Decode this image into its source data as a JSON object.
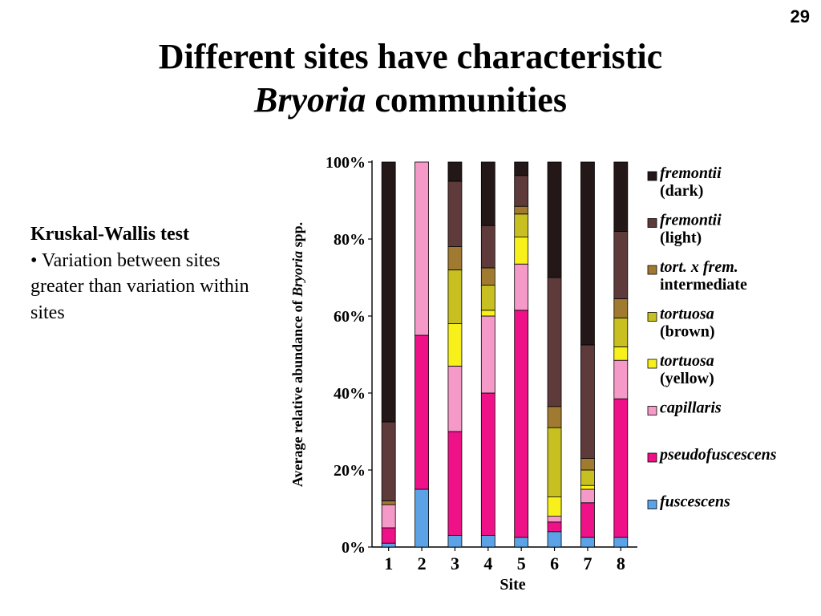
{
  "slide_number": "29",
  "title": {
    "line1": "Different sites have characteristic",
    "line2_italic": "Bryoria",
    "line2_rest": " communities"
  },
  "side_text": {
    "heading": "Kruskal-Wallis test",
    "bullet": "• Variation between sites greater than variation within sites"
  },
  "chart_data": {
    "type": "bar",
    "stacked": true,
    "title": "",
    "xlabel": "Site",
    "ylabel_parts": [
      "Average relative abundance of ",
      "Bryoria",
      " spp."
    ],
    "ylim": [
      0,
      100
    ],
    "yticks": [
      "0%",
      "20%",
      "40%",
      "60%",
      "80%",
      "100%"
    ],
    "categories": [
      "1",
      "2",
      "3",
      "4",
      "5",
      "6",
      "7",
      "8"
    ],
    "series": [
      {
        "italic": "fuscescens",
        "plain": "",
        "color": "#5ba3e6",
        "values": [
          1,
          15,
          3,
          3,
          2.5,
          4,
          2.5,
          2.5
        ]
      },
      {
        "italic": "pseudofuscescens",
        "plain": "",
        "color": "#ee1188",
        "values": [
          4,
          40,
          27,
          37,
          59,
          2.5,
          9,
          36
        ]
      },
      {
        "italic": "capillaris",
        "plain": "",
        "color": "#f59ac8",
        "values": [
          6,
          45,
          17,
          20,
          12,
          1.5,
          3.5,
          10
        ]
      },
      {
        "italic": "tortuosa",
        "plain": "(yellow)",
        "color": "#f8f01a",
        "values": [
          0,
          0,
          11,
          1.5,
          7,
          5,
          1,
          3.5
        ]
      },
      {
        "italic": "tortuosa",
        "plain": "(brown)",
        "color": "#c8c020",
        "values": [
          0,
          0,
          14,
          6.5,
          6,
          18,
          4,
          7.5
        ]
      },
      {
        "italic": "tort. x frem.",
        "plain": "intermediate",
        "color": "#a07a30",
        "values": [
          1,
          0,
          6,
          4.5,
          2,
          5.5,
          3,
          5
        ]
      },
      {
        "italic": "fremontii",
        "plain": "(light)",
        "color": "#5e3a3a",
        "values": [
          20.5,
          0,
          17,
          11,
          8,
          33.5,
          29.5,
          17.5
        ]
      },
      {
        "italic": "fremontii",
        "plain": "(dark)",
        "color": "#231717",
        "values": [
          67.5,
          0,
          5,
          16.5,
          3.5,
          30,
          47.5,
          18
        ]
      }
    ],
    "grid": false,
    "legend_position": "right"
  }
}
